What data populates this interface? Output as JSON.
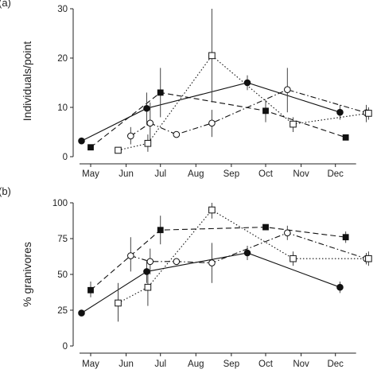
{
  "chart_data": [
    {
      "type": "line",
      "panel_label": "(a)",
      "ylabel": "Individuals/point",
      "xlabel": "",
      "categories": [
        "May",
        "Jun",
        "Jul",
        "Aug",
        "Sep",
        "Oct",
        "Nov",
        "Dec"
      ],
      "ylim": [
        0,
        30
      ],
      "yticks": [
        0,
        10,
        20,
        30
      ],
      "grid": false,
      "series": [
        {
          "marker": "filled-circle",
          "line": "solid",
          "points": [
            {
              "x": "Apr 23",
              "y": 3.2,
              "err": [
                2.6,
                3.8
              ]
            },
            {
              "x": "Jun 19",
              "y": 9.8,
              "err": [
                6.5,
                13.0
              ]
            },
            {
              "x": "Sep 15",
              "y": 15.0,
              "err": [
                13.5,
                16.5
              ]
            },
            {
              "x": "Dec 05",
              "y": 9.0,
              "err": [
                7.5,
                10.5
              ]
            }
          ]
        },
        {
          "marker": "filled-square",
          "line": "dashed",
          "points": [
            {
              "x": "May 01",
              "y": 1.9,
              "err": null
            },
            {
              "x": "Jul 01",
              "y": 13.0,
              "err": [
                8.0,
                18.0
              ]
            },
            {
              "x": "Oct 01",
              "y": 9.3,
              "err": [
                7.0,
                11.5
              ]
            },
            {
              "x": "Dec 10",
              "y": 3.9,
              "err": null
            }
          ]
        },
        {
          "marker": "open-circle",
          "line": "dash-dot",
          "points": [
            {
              "x": "Jun 05",
              "y": 4.2,
              "err": [
                2.5,
                6.0
              ]
            },
            {
              "x": "Jun 22",
              "y": 6.8,
              "err": [
                2.5,
                11.0
              ]
            },
            {
              "x": "Jul 15",
              "y": 4.5,
              "err": null
            },
            {
              "x": "Aug 15",
              "y": 6.8,
              "err": [
                4.0,
                9.5
              ]
            },
            {
              "x": "Oct 20",
              "y": 13.6,
              "err": [
                9.0,
                18.0
              ]
            },
            {
              "x": "Dec 28",
              "y": 8.9,
              "err": [
                7.0,
                10.5
              ]
            }
          ]
        },
        {
          "marker": "open-square",
          "line": "dotted",
          "points": [
            {
              "x": "May 25",
              "y": 1.3,
              "err": null
            },
            {
              "x": "Jun 20",
              "y": 2.7,
              "err": [
                1.0,
                4.5
              ]
            },
            {
              "x": "Aug 15",
              "y": 20.5,
              "err": [
                11.0,
                30.0
              ]
            },
            {
              "x": "Oct 25",
              "y": 6.6,
              "err": [
                5.0,
                8.0
              ]
            },
            {
              "x": "Dec 30",
              "y": 8.8,
              "err": [
                7.5,
                10.0
              ]
            }
          ]
        }
      ]
    },
    {
      "type": "line",
      "panel_label": "(b)",
      "ylabel": "% granivores",
      "xlabel": "",
      "categories": [
        "May",
        "Jun",
        "Jul",
        "Aug",
        "Sep",
        "Oct",
        "Nov",
        "Dec"
      ],
      "ylim": [
        0,
        100
      ],
      "yticks": [
        0,
        25,
        50,
        75,
        100
      ],
      "grid": false,
      "series": [
        {
          "marker": "filled-circle",
          "line": "solid",
          "points": [
            {
              "x": "Apr 23",
              "y": 23,
              "err": [
                21,
                25
              ]
            },
            {
              "x": "Jun 19",
              "y": 52,
              "err": [
                44,
                60
              ]
            },
            {
              "x": "Sep 15",
              "y": 65,
              "err": [
                60,
                70
              ]
            },
            {
              "x": "Dec 05",
              "y": 41,
              "err": [
                37,
                45
              ]
            }
          ]
        },
        {
          "marker": "filled-square",
          "line": "dashed",
          "points": [
            {
              "x": "May 01",
              "y": 39,
              "err": [
                34,
                45
              ]
            },
            {
              "x": "Jul 01",
              "y": 81,
              "err": [
                71,
                91
              ]
            },
            {
              "x": "Oct 01",
              "y": 83,
              "err": [
                81,
                85
              ]
            },
            {
              "x": "Dec 10",
              "y": 76,
              "err": [
                72,
                80
              ]
            }
          ]
        },
        {
          "marker": "open-circle",
          "line": "dash-dot",
          "points": [
            {
              "x": "Jun 05",
              "y": 63,
              "err": [
                52,
                76
              ]
            },
            {
              "x": "Jun 22",
              "y": 59,
              "err": [
                50,
                68
              ]
            },
            {
              "x": "Jul 15",
              "y": 59,
              "err": null
            },
            {
              "x": "Aug 15",
              "y": 58,
              "err": [
                44,
                72
              ]
            },
            {
              "x": "Oct 20",
              "y": 79,
              "err": [
                74,
                84
              ]
            },
            {
              "x": "Dec 28",
              "y": 61,
              "err": [
                57,
                65
              ]
            }
          ]
        },
        {
          "marker": "open-square",
          "line": "dotted",
          "points": [
            {
              "x": "May 25",
              "y": 30,
              "err": [
                17,
                44
              ]
            },
            {
              "x": "Jun 20",
              "y": 41,
              "err": [
                28,
                54
              ]
            },
            {
              "x": "Aug 15",
              "y": 95,
              "err": [
                89,
                100
              ]
            },
            {
              "x": "Oct 25",
              "y": 61,
              "err": [
                56,
                66
              ]
            },
            {
              "x": "Dec 30",
              "y": 61,
              "err": [
                56,
                66
              ]
            }
          ]
        }
      ]
    }
  ]
}
